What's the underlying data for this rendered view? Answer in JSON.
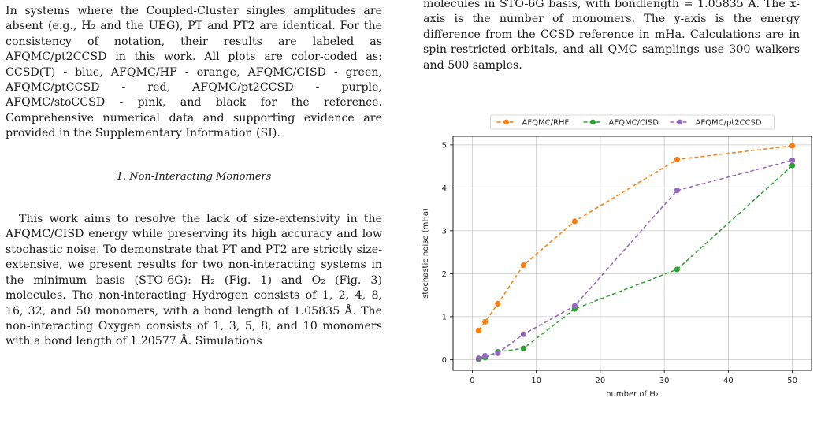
{
  "left_column": {
    "para1": "In systems where the Coupled-Cluster singles amplitudes are absent (e.g., H₂ and the UEG), PT and PT2 are identical. For the consistency of notation, their results are labeled as AFQMC/pt2CCSD in this work. All plots are color-coded as: CCSD(T) - blue, AFQMC/HF - orange, AFQMC/CISD - green, AFQMC/ptCCSD - red, AFQMC/pt2CCSD - purple, AFQMC/stoCCSD - pink, and black for the reference. Comprehensive numerical data and supporting evidence are provided in the Supplementary Information (SI).",
    "section_heading": "1.   Non-Interacting Monomers",
    "para2": "This work aims to resolve the lack of size-extensivity in the AFQMC/CISD energy while preserving its high accuracy and low stochastic noise. To demonstrate that PT and PT2 are strictly size-extensive, we present results for two non-interacting systems in the minimum basis (STO-6G): H₂ (Fig. 1) and O₂ (Fig. 3) molecules. The non-interacting Hydrogen consists of 1, 2, 4, 8, 16, 32, and 50 monomers, with a bond length of 1.05835 Å. The non-interacting Oxygen consists of 1, 3, 5, 8, and 10 monomers with a bond length of 1.20577 Å. Simulations"
  },
  "right_column": {
    "caption": "molecules in STO-6G basis, with bondlength = 1.05835 Å. The x-axis is the number of monomers. The y-axis is the energy difference from the CCSD reference in mHa. Calculations are in spin-restricted orbitals, and all QMC samplings use 300 walkers and 500 samples."
  },
  "chart_data": {
    "type": "line",
    "title": "",
    "xlabel": "number of H₂",
    "ylabel": "stochastic noise (mHa)",
    "xlim": [
      -3,
      53
    ],
    "ylim": [
      -0.25,
      5.2
    ],
    "xticks": [
      0,
      10,
      20,
      30,
      40,
      50
    ],
    "yticks": [
      0,
      1,
      2,
      3,
      4,
      5
    ],
    "grid": true,
    "legend_position": "top-center",
    "line_style": "dashed",
    "series": [
      {
        "name": "AFQMC/RHF",
        "color": "#ff7f0e",
        "x": [
          1,
          2,
          4,
          8,
          16,
          32,
          50
        ],
        "y": [
          0.68,
          0.88,
          1.3,
          2.2,
          3.22,
          4.66,
          4.98
        ]
      },
      {
        "name": "AFQMC/CISD",
        "color": "#2ca02c",
        "x": [
          1,
          2,
          4,
          8,
          16,
          32,
          50
        ],
        "y": [
          0.01,
          0.05,
          0.18,
          0.26,
          1.18,
          2.1,
          4.52
        ]
      },
      {
        "name": "AFQMC/pt2CCSD",
        "color": "#9467bd",
        "x": [
          1,
          2,
          4,
          8,
          16,
          32,
          50
        ],
        "y": [
          0.03,
          0.09,
          0.15,
          0.59,
          1.25,
          3.94,
          4.64
        ]
      }
    ]
  }
}
